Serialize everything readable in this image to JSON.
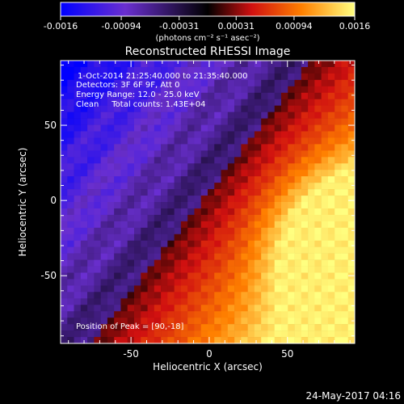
{
  "chart_data": {
    "type": "heatmap",
    "title": "Reconstructed RHESSI Image",
    "xlabel": "Heliocentric X (arcsec)",
    "ylabel": "Heliocentric Y (arcsec)",
    "xlim": [
      -95,
      93
    ],
    "ylim": [
      -95,
      93
    ],
    "x_ticks": [
      -50,
      0,
      50
    ],
    "y_ticks": [
      -50,
      0,
      50
    ],
    "colorbar": {
      "range": [
        -0.0016,
        0.0016
      ],
      "tick_values": [
        -0.0016,
        -0.00094,
        -0.00031,
        0.00031,
        0.00094,
        0.0016
      ],
      "tick_labels": [
        "-0.0016",
        "-0.00094",
        "-0.00031",
        "0.00031",
        "0.00094",
        "0.0016"
      ],
      "units_label": "(photons cm⁻² s⁻¹ asec⁻²)",
      "colors": [
        "#0000ff",
        "#6a2fd0",
        "#000000",
        "#d01010",
        "#ff8000",
        "#ffff80"
      ]
    },
    "annotations": [
      "1-Oct-2014 21:25:40.000 to 21:35:40.000",
      "Detectors: 3F 6F 9F, Att 0",
      "Energy Range: 12.0 - 25.0 keV",
      "Clean     Total counts: 1.43E+04"
    ],
    "peak_label": "Position of Peak = [90,-18]",
    "peak": [
      90,
      -18
    ]
  },
  "footer": {
    "timestamp": "24-May-2017 04:16"
  }
}
